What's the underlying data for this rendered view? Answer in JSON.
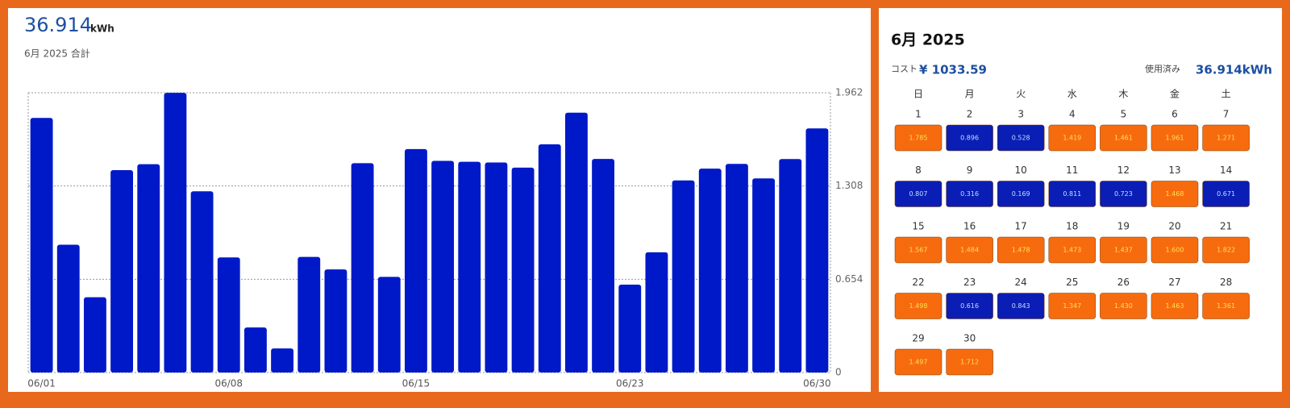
{
  "header": {
    "total": "36.914",
    "unit": "kWh",
    "subtitle": "6月 2025 合計"
  },
  "chart_data": {
    "type": "bar",
    "categories": [
      "06/01",
      null,
      null,
      null,
      null,
      null,
      null,
      "06/08",
      null,
      null,
      null,
      null,
      null,
      null,
      "06/15",
      null,
      null,
      null,
      null,
      null,
      null,
      null,
      "06/23",
      null,
      null,
      null,
      null,
      null,
      null,
      "06/30"
    ],
    "values": [
      1.785,
      0.896,
      0.528,
      1.419,
      1.461,
      1.961,
      1.271,
      0.807,
      0.316,
      0.169,
      0.811,
      0.723,
      1.468,
      0.671,
      1.567,
      1.484,
      1.478,
      1.473,
      1.437,
      1.6,
      1.822,
      1.498,
      0.616,
      0.843,
      1.347,
      1.43,
      1.463,
      1.361,
      1.497,
      1.712
    ],
    "color": "#0019c8",
    "ylim": [
      0,
      1.962
    ],
    "yticks": [
      0,
      0.654,
      1.308,
      1.962
    ],
    "grid": true
  },
  "calendar": {
    "title": "6月 2025",
    "cost_label": "コスト",
    "cost": "¥ 1033.59",
    "used_label": "使用済み",
    "used": "36.914kWh",
    "weekdays": [
      "日",
      "月",
      "火",
      "水",
      "木",
      "金",
      "土"
    ],
    "days": [
      {
        "day": 1,
        "value": "1.785",
        "color": "#f76b0f"
      },
      {
        "day": 2,
        "value": "0.896",
        "color": "#0a1db5"
      },
      {
        "day": 3,
        "value": "0.528",
        "color": "#0a1db5"
      },
      {
        "day": 4,
        "value": "1.419",
        "color": "#f76b0f"
      },
      {
        "day": 5,
        "value": "1.461",
        "color": "#f76b0f"
      },
      {
        "day": 6,
        "value": "1.961",
        "color": "#f76b0f"
      },
      {
        "day": 7,
        "value": "1.271",
        "color": "#f76b0f"
      },
      {
        "day": 8,
        "value": "0.807",
        "color": "#0a1db5"
      },
      {
        "day": 9,
        "value": "0.316",
        "color": "#0a1db5"
      },
      {
        "day": 10,
        "value": "0.169",
        "color": "#0a1db5"
      },
      {
        "day": 11,
        "value": "0.811",
        "color": "#0a1db5"
      },
      {
        "day": 12,
        "value": "0.723",
        "color": "#0a1db5"
      },
      {
        "day": 13,
        "value": "1.468",
        "color": "#f76b0f"
      },
      {
        "day": 14,
        "value": "0.671",
        "color": "#0a1db5"
      },
      {
        "day": 15,
        "value": "1.567",
        "color": "#f76b0f"
      },
      {
        "day": 16,
        "value": "1.484",
        "color": "#f76b0f"
      },
      {
        "day": 17,
        "value": "1.478",
        "color": "#f76b0f"
      },
      {
        "day": 18,
        "value": "1.473",
        "color": "#f76b0f"
      },
      {
        "day": 19,
        "value": "1.437",
        "color": "#f76b0f"
      },
      {
        "day": 20,
        "value": "1.600",
        "color": "#f76b0f"
      },
      {
        "day": 21,
        "value": "1.822",
        "color": "#f76b0f"
      },
      {
        "day": 22,
        "value": "1.498",
        "color": "#f76b0f"
      },
      {
        "day": 23,
        "value": "0.616",
        "color": "#0a1db5"
      },
      {
        "day": 24,
        "value": "0.843",
        "color": "#0a1db5"
      },
      {
        "day": 25,
        "value": "1.347",
        "color": "#f76b0f"
      },
      {
        "day": 26,
        "value": "1.430",
        "color": "#f76b0f"
      },
      {
        "day": 27,
        "value": "1.463",
        "color": "#f76b0f"
      },
      {
        "day": 28,
        "value": "1.361",
        "color": "#f76b0f"
      },
      {
        "day": 29,
        "value": "1.497",
        "color": "#f76b0f"
      },
      {
        "day": 30,
        "value": "1.712",
        "color": "#f76b0f"
      }
    ]
  }
}
